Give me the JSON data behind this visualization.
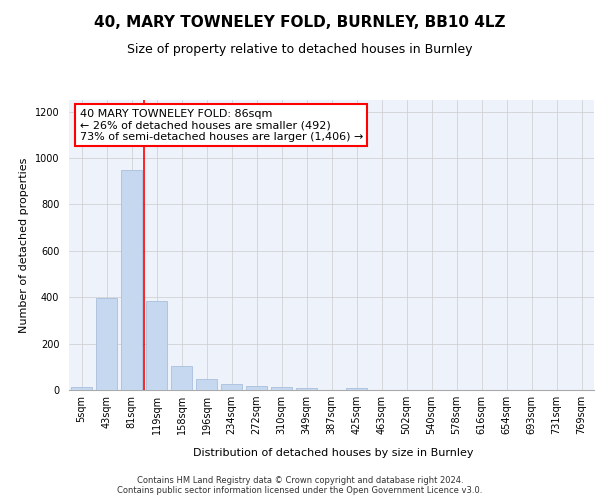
{
  "title_line1": "40, MARY TOWNELEY FOLD, BURNLEY, BB10 4LZ",
  "title_line2": "Size of property relative to detached houses in Burnley",
  "xlabel": "Distribution of detached houses by size in Burnley",
  "ylabel": "Number of detached properties",
  "footer_line1": "Contains HM Land Registry data © Crown copyright and database right 2024.",
  "footer_line2": "Contains public sector information licensed under the Open Government Licence v3.0.",
  "annotation_line1": "40 MARY TOWNELEY FOLD: 86sqm",
  "annotation_line2": "← 26% of detached houses are smaller (492)",
  "annotation_line3": "73% of semi-detached houses are larger (1,406) →",
  "bar_labels": [
    "5sqm",
    "43sqm",
    "81sqm",
    "119sqm",
    "158sqm",
    "196sqm",
    "234sqm",
    "272sqm",
    "310sqm",
    "349sqm",
    "387sqm",
    "425sqm",
    "463sqm",
    "502sqm",
    "540sqm",
    "578sqm",
    "616sqm",
    "654sqm",
    "693sqm",
    "731sqm",
    "769sqm"
  ],
  "bar_values": [
    15,
    395,
    950,
    385,
    105,
    48,
    25,
    18,
    12,
    8,
    0,
    10,
    0,
    0,
    0,
    0,
    0,
    0,
    0,
    0,
    0
  ],
  "bar_color": "#c5d8f0",
  "bar_edge_color": "#a0b8d8",
  "ylim": [
    0,
    1250
  ],
  "yticks": [
    0,
    200,
    400,
    600,
    800,
    1000,
    1200
  ],
  "bg_color": "#eef2fb",
  "grid_color": "#cccccc",
  "title1_fontsize": 11,
  "title2_fontsize": 9,
  "axis_label_fontsize": 8,
  "tick_fontsize": 7,
  "footer_fontsize": 6,
  "annot_fontsize": 8
}
